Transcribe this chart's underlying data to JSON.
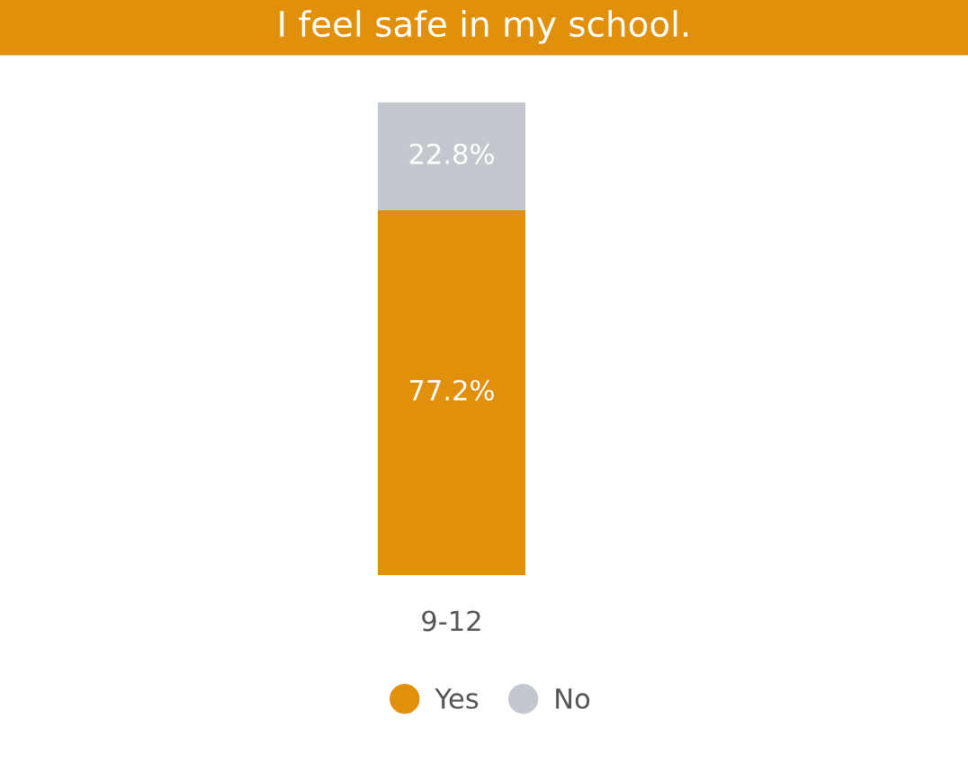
{
  "chart_data": {
    "type": "bar",
    "title": "I feel safe in my school.",
    "categories": [
      "9-12"
    ],
    "stacked": true,
    "legend": "bottom",
    "grid": false,
    "series": [
      {
        "name": "Yes",
        "color": "#e0900a",
        "values": [
          77.2
        ],
        "value_labels": [
          "77.2%"
        ]
      },
      {
        "name": "No",
        "color": "#c3c8cf",
        "values": [
          22.8
        ],
        "value_labels": [
          "22.8%"
        ]
      }
    ]
  }
}
